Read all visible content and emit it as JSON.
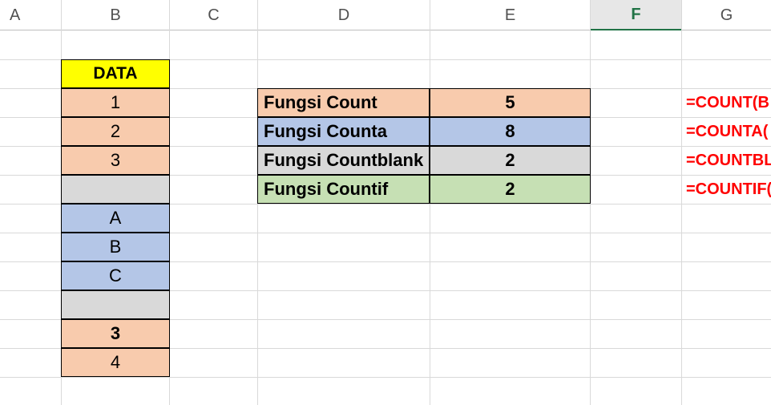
{
  "column_headers": [
    {
      "label": "A",
      "selected": false
    },
    {
      "label": "B",
      "selected": false
    },
    {
      "label": "C",
      "selected": false
    },
    {
      "label": "D",
      "selected": false
    },
    {
      "label": "E",
      "selected": false
    },
    {
      "label": "F",
      "selected": true
    },
    {
      "label": "G",
      "selected": false
    }
  ],
  "data_column": {
    "header": {
      "text": "DATA",
      "fill": "yellow"
    },
    "cells": [
      {
        "text": "1",
        "fill": "peach",
        "bold": false
      },
      {
        "text": "2",
        "fill": "peach",
        "bold": false
      },
      {
        "text": "3",
        "fill": "peach",
        "bold": false
      },
      {
        "text": "",
        "fill": "gray",
        "bold": false
      },
      {
        "text": "A",
        "fill": "blue",
        "bold": false
      },
      {
        "text": "B",
        "fill": "blue",
        "bold": false
      },
      {
        "text": "C",
        "fill": "blue",
        "bold": false
      },
      {
        "text": "",
        "fill": "gray",
        "bold": false
      },
      {
        "text": "3",
        "fill": "peach",
        "bold": true
      },
      {
        "text": "4",
        "fill": "peach",
        "bold": false
      }
    ]
  },
  "summary_table": {
    "rows": [
      {
        "label": "Fungsi Count",
        "value": "5",
        "fill": "peach"
      },
      {
        "label": "Fungsi Counta",
        "value": "8",
        "fill": "blue"
      },
      {
        "label": "Fungsi Countblank",
        "value": "2",
        "fill": "gray"
      },
      {
        "label": "Fungsi Countif",
        "value": "2",
        "fill": "green"
      }
    ]
  },
  "formula_column": {
    "cells": [
      "=COUNT(B",
      "=COUNTA(",
      "=COUNTBL",
      "=COUNTIF("
    ]
  },
  "colors": {
    "peach": "#F8CBAD",
    "blue": "#B4C6E7",
    "gray": "#D9D9D9",
    "green": "#C6E0B4",
    "yellow": "#FFFF00",
    "formula_red": "#FF0000",
    "selected_green": "#217346",
    "header_selected_bg": "#E7E7E7",
    "gridline": "#D9D9D9"
  }
}
